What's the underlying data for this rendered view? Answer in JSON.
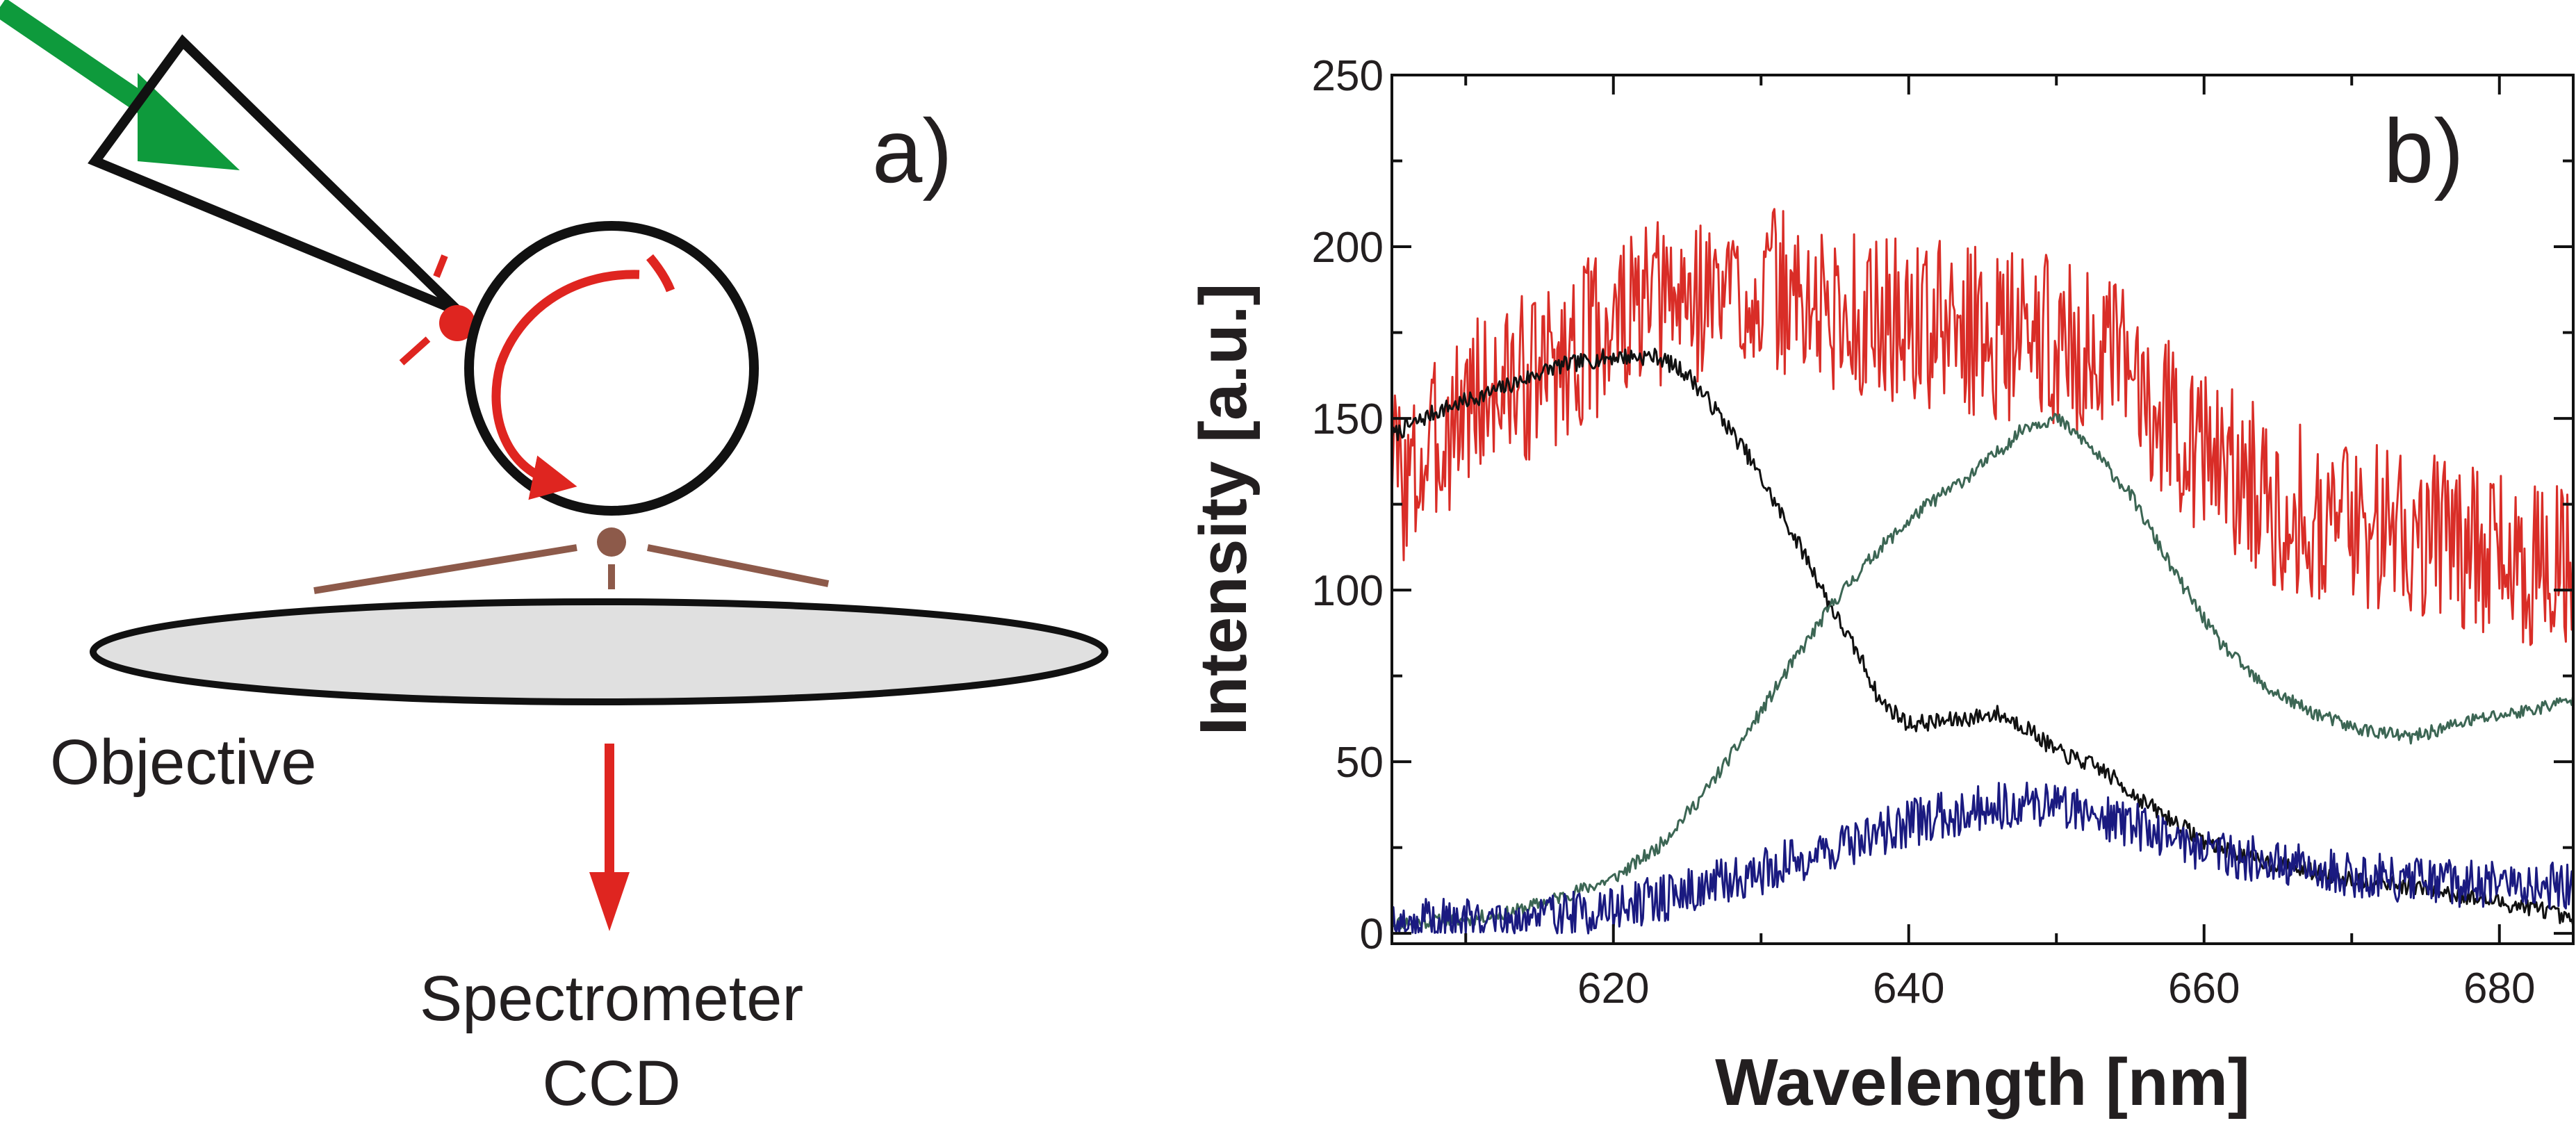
{
  "colors": {
    "pump_arrow": "#0e9a3c",
    "cavity_light": "#df2520",
    "scatterer": "#8d5a4a",
    "objective_fill": "#e0e0e0",
    "series_red": "#d92d27",
    "series_black": "#111111",
    "series_green": "#3c6654",
    "series_blue": "#1a1a80"
  },
  "panel_a": {
    "label": "a)",
    "objective_label": "Objective",
    "detector_label_line1": "Spectrometer",
    "detector_label_line2": "CCD",
    "icons": [
      "pump-arrow-icon",
      "fiber-tip-icon",
      "microsphere-icon",
      "circulating-light-arrow-icon",
      "scatterer-dot-icon",
      "objective-lens-icon",
      "output-arrow-icon"
    ]
  },
  "chart_data": {
    "type": "line",
    "panel_label": "b)",
    "xlabel": "Wavelength [nm]",
    "ylabel": "Intensity [a.u.]",
    "xlim": [
      605,
      685
    ],
    "ylim": [
      -3,
      250
    ],
    "x_ticks": [
      620,
      640,
      660,
      680
    ],
    "x_minor_ticks": [
      610,
      630,
      650,
      670
    ],
    "y_ticks": [
      0,
      50,
      100,
      150,
      200,
      250
    ],
    "grid": false,
    "legend": "none",
    "series": [
      {
        "color": "#d92d27",
        "noise": 25,
        "seed": 3,
        "x": [
          605,
          606,
          610,
          615,
          620,
          625,
          630,
          635,
          640,
          645,
          650,
          655,
          660,
          665,
          670,
          675,
          680,
          685
        ],
        "y": [
          140,
          130,
          155,
          163,
          178,
          185,
          188,
          180,
          178,
          175,
          173,
          163,
          140,
          125,
          120,
          117,
          110,
          105
        ]
      },
      {
        "color": "#111111",
        "noise": 2.5,
        "seed": 7,
        "x": [
          605,
          608,
          612,
          616,
          620,
          623,
          625,
          627,
          629,
          631,
          633,
          635,
          637,
          638,
          640,
          643,
          646,
          648,
          650,
          653,
          656,
          660,
          663,
          666,
          670,
          675,
          680,
          683,
          685
        ],
        "y": [
          145,
          152,
          158,
          165,
          168,
          168,
          163,
          152,
          140,
          125,
          110,
          93,
          78,
          68,
          61,
          62,
          64,
          60,
          53,
          48,
          38,
          27,
          22,
          19,
          16,
          13,
          9,
          7,
          3
        ]
      },
      {
        "color": "#3c6654",
        "noise": 2.0,
        "seed": 11,
        "x": [
          605,
          610,
          613,
          616,
          620,
          623,
          626,
          629,
          632,
          635,
          638,
          641,
          644,
          646,
          648,
          650,
          652,
          655,
          658,
          661,
          664,
          667,
          670,
          674,
          678,
          682,
          685
        ],
        "y": [
          3,
          4,
          6,
          10,
          16,
          25,
          40,
          58,
          78,
          97,
          112,
          124,
          133,
          140,
          148,
          150,
          143,
          128,
          105,
          85,
          72,
          65,
          60,
          57,
          62,
          65,
          68
        ]
      },
      {
        "color": "#1a1a80",
        "noise": 7,
        "seed": 19,
        "x": [
          605,
          610,
          615,
          620,
          625,
          630,
          635,
          640,
          645,
          650,
          655,
          660,
          665,
          670,
          675,
          680,
          685
        ],
        "y": [
          3,
          4,
          5,
          7,
          12,
          18,
          25,
          32,
          37,
          38,
          32,
          25,
          20,
          17,
          15,
          14,
          14
        ]
      }
    ]
  }
}
